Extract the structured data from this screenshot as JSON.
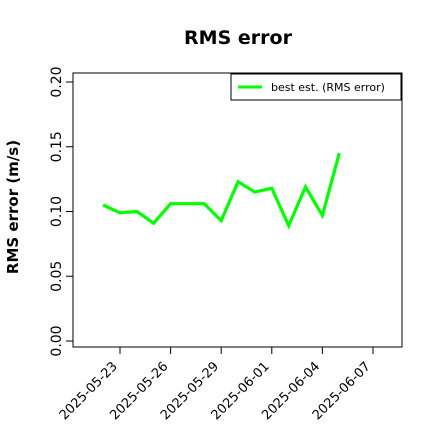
{
  "chart_data": {
    "type": "line",
    "title": "RMS error",
    "xlabel": "",
    "ylabel": "RMS error (m/s)",
    "ylim": [
      0.0,
      0.21
    ],
    "yticks": [
      0.0,
      0.05,
      0.1,
      0.15,
      0.2
    ],
    "ytick_labels": [
      "0.00",
      "0.05",
      "0.10",
      "0.15",
      "0.20"
    ],
    "xlim": [
      "2025-05-20",
      "2025-06-09"
    ],
    "xticks": [
      "2025-05-23",
      "2025-05-26",
      "2025-05-29",
      "2025-06-01",
      "2025-06-04",
      "2025-06-07"
    ],
    "xtick_labels": [
      "2025-05-23",
      "2025-05-26",
      "2025-05-29",
      "2025-06-01",
      "2025-06-04",
      "2025-06-07"
    ],
    "xtick_label_colors": [
      "#000000",
      "#000000",
      "#228b22",
      "#000000",
      "#000000",
      "#000000"
    ],
    "grid": false,
    "legend_position": "top-right",
    "series": [
      {
        "name": "best est. (RMS error)",
        "color": "#00ff00",
        "x": [
          "2025-05-22",
          "2025-05-23",
          "2025-05-24",
          "2025-05-25",
          "2025-05-26",
          "2025-05-27",
          "2025-05-28",
          "2025-05-29",
          "2025-05-30",
          "2025-05-31",
          "2025-06-01",
          "2025-06-02",
          "2025-06-03",
          "2025-06-04",
          "2025-06-05"
        ],
        "values": [
          0.105,
          0.099,
          0.1,
          0.091,
          0.106,
          0.106,
          0.106,
          0.093,
          0.123,
          0.115,
          0.118,
          0.089,
          0.119,
          0.097,
          0.145
        ]
      }
    ]
  }
}
